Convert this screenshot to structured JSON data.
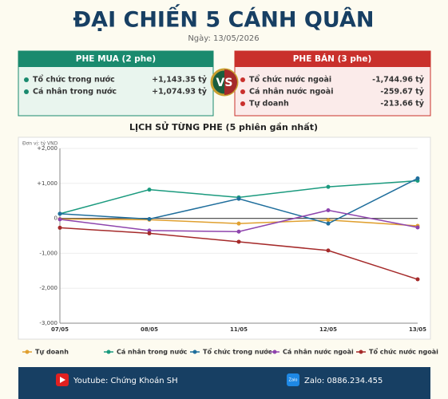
{
  "header": {
    "title": "ĐẠI CHIẾN 5 CÁNH QUÂN",
    "date": "Ngày: 13/05/2026"
  },
  "buy_panel": {
    "title": "PHE MUA  (2 phe)",
    "rows": [
      [
        "Tổ chức trong nước",
        "+1,143.35 tỷ"
      ],
      [
        "Cá nhân trong nước",
        "+1,074.93 tỷ"
      ]
    ]
  },
  "vs": "VS",
  "sell_panel": {
    "title": "PHE BÁN  (3 phe)",
    "rows": [
      [
        "Tổ chức nước ngoài",
        "-1,744.96 tỷ"
      ],
      [
        "Cá nhân nước ngoài",
        "-259.67 tỷ"
      ],
      [
        "Tự doanh",
        "-213.66 tỷ"
      ]
    ]
  },
  "chart_data": {
    "type": "line",
    "title": "LỊCH SỬ TỪNG PHE (5 phiên gần nhất)",
    "unit_label": "Đơn vị: tỷ VND",
    "categories": [
      "07/05",
      "08/05",
      "11/05",
      "12/05",
      "13/05"
    ],
    "series": [
      {
        "name": "Tự doanh",
        "color": "#e0a030",
        "values": [
          -20,
          -40,
          -150,
          -50,
          -213.66
        ]
      },
      {
        "name": "Cá nhân trong nước",
        "color": "#1a9a7e",
        "values": [
          130,
          820,
          600,
          900,
          1074.93
        ]
      },
      {
        "name": "Tổ chức trong nước",
        "color": "#1f6e9c",
        "values": [
          130,
          -20,
          560,
          -150,
          1143.35
        ]
      },
      {
        "name": "Cá nhân nước ngoài",
        "color": "#8e44ad",
        "values": [
          -30,
          -350,
          -380,
          230,
          -259.67
        ]
      },
      {
        "name": "Tổ chức nước ngoài",
        "color": "#a52a2a",
        "values": [
          -270,
          -430,
          -670,
          -920,
          -1744.96
        ]
      }
    ],
    "ylim": [
      -3000,
      2000
    ],
    "yticks": [
      {
        "value": -3000,
        "label": "-3,000"
      },
      {
        "value": -2000,
        "label": "-2,000"
      },
      {
        "value": -1000,
        "label": "-1,000"
      },
      0,
      {
        "value": 1000,
        "label": "+1,000"
      },
      {
        "value": 2000,
        "label": "+2,000"
      }
    ],
    "grid": true,
    "legend": "bottom"
  },
  "footer": {
    "youtube": "Youtube: Chứng Khoán SH",
    "zalo_icon": "Zalo",
    "zalo": "Zalo: 0886.234.455"
  }
}
